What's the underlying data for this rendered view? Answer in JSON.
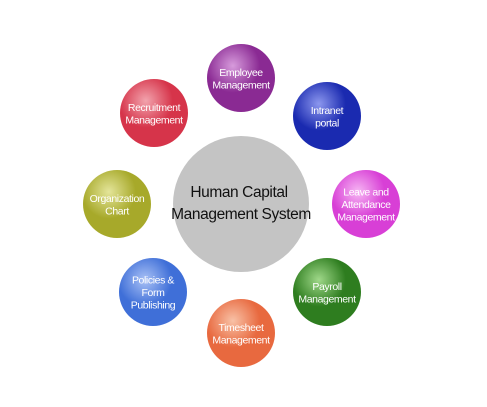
{
  "diagram": {
    "center": {
      "lines": [
        "Human Capital",
        "Management System"
      ],
      "color": "#c4c4c4"
    },
    "nodes": [
      {
        "id": "employee-management",
        "lines": [
          "Employee",
          "Management"
        ],
        "color": "#8a2a93",
        "light": "#d79bdc"
      },
      {
        "id": "intranet-portal",
        "lines": [
          "Intranet",
          "portal"
        ],
        "color": "#1a2ab0",
        "light": "#8c97ee"
      },
      {
        "id": "leave-and-attendance-management",
        "lines": [
          "Leave and",
          "Attendance",
          "Management"
        ],
        "color": "#d83fd6",
        "light": "#f6b6f3"
      },
      {
        "id": "payroll-management",
        "lines": [
          "Payroll",
          "Management"
        ],
        "color": "#2e7d1f",
        "light": "#9fd889"
      },
      {
        "id": "timesheet-management",
        "lines": [
          "Timesheet",
          "Management"
        ],
        "color": "#e8693f",
        "light": "#f8c1a6"
      },
      {
        "id": "policies-and-form-publishing",
        "lines": [
          "Policies &",
          "Form",
          "Publishing"
        ],
        "color": "#3f6fd8",
        "light": "#a9c1f5"
      },
      {
        "id": "organization-chart",
        "lines": [
          "Organization",
          "Chart"
        ],
        "color": "#a7a92a",
        "light": "#e4e59a"
      },
      {
        "id": "recruitment-management",
        "lines": [
          "Recruitment",
          "Management"
        ],
        "color": "#d6344a",
        "light": "#f2a3ad"
      }
    ]
  }
}
